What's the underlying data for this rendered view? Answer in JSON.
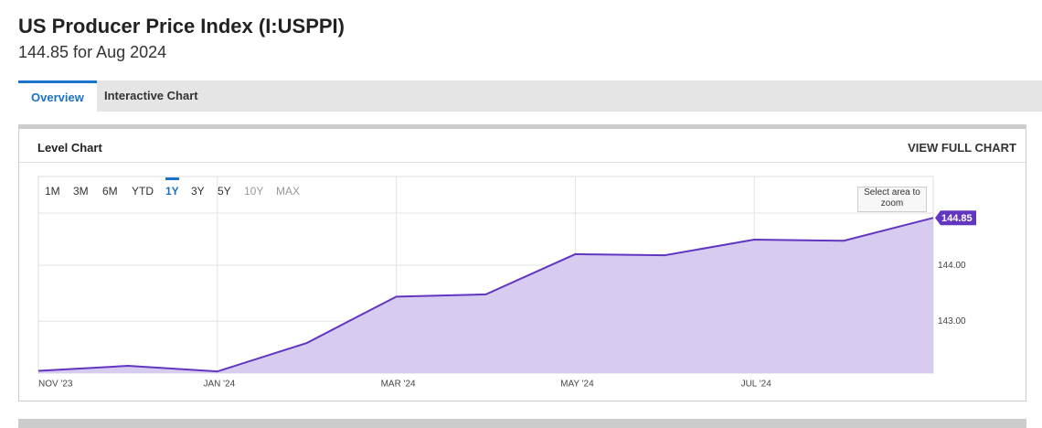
{
  "header": {
    "title": "US Producer Price Index (I:USPPI)",
    "subtitle": "144.85 for Aug 2024"
  },
  "tabs": [
    "Overview",
    "Interactive Chart"
  ],
  "panel": {
    "title": "Level Chart",
    "link": "VIEW FULL CHART",
    "ranges": [
      "1M",
      "3M",
      "6M",
      "YTD",
      "1Y",
      "3Y",
      "5Y",
      "10Y",
      "MAX"
    ],
    "active_range": "1Y",
    "disabled_ranges": [
      "10Y",
      "MAX"
    ],
    "zoom_hint": "Select area to zoom"
  },
  "chart_data": {
    "type": "area",
    "categories": [
      "NOV '23",
      null,
      "JAN '24",
      null,
      "MAR '24",
      null,
      "MAY '24",
      null,
      "JUL '24",
      null,
      null
    ],
    "series": [
      {
        "color": "#6236c0",
        "fill": "#d7cbf0",
        "values": [
          142.11,
          142.2,
          142.1,
          142.61,
          143.44,
          143.48,
          144.2,
          144.18,
          144.46,
          144.44,
          144.85
        ]
      }
    ],
    "ylim": [
      142.07,
      145.59
    ],
    "yticks": [
      {
        "value": 143,
        "label": "143.00"
      },
      {
        "value": 144,
        "label": "144.00"
      }
    ],
    "grid": true
  }
}
